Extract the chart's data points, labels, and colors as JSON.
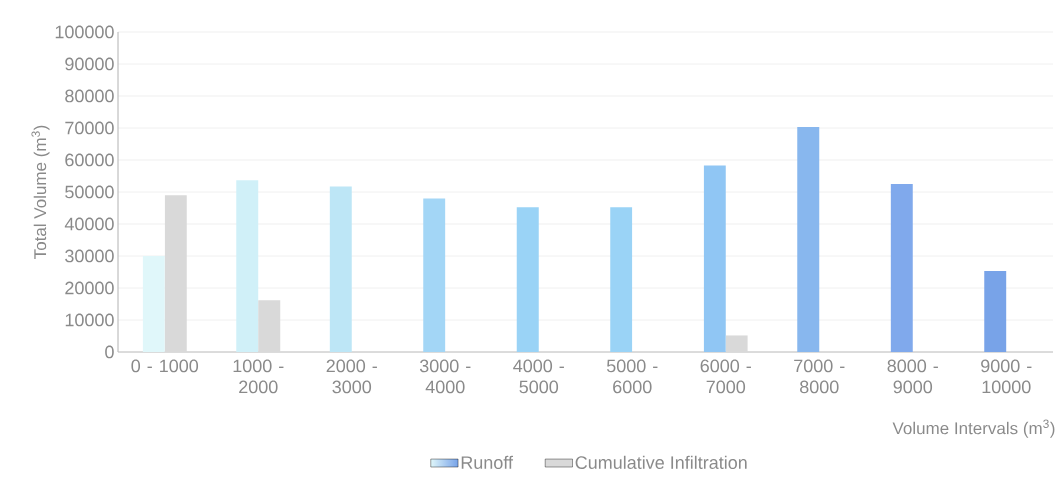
{
  "chart_data": {
    "type": "bar",
    "xlabel": "Volume Intervals (m$^{3}$)",
    "ylabel": "Total Volume (m$^{3}$)",
    "categories": [
      "0 - 1000",
      "1000 - 2000",
      "2000 - 3000",
      "3000 - 4000",
      "4000 - 5000",
      "5000 - 6000",
      "6000 - 7000",
      "7000 - 8000",
      "8000 - 9000",
      "9000 - 10000"
    ],
    "series": [
      {
        "name": "Runoff",
        "colors": [
          "#e0f7fa",
          "#d0f0f8",
          "#bde6f6",
          "#a3d6f6",
          "#9ad3f6",
          "#9ad3f6",
          "#90c6f4",
          "#88b7ee",
          "#80a9ec",
          "#78a3e8"
        ],
        "values": [
          30000,
          53700,
          51700,
          48000,
          45200,
          45200,
          58300,
          70300,
          52500,
          25300
        ]
      },
      {
        "name": "Cumulative Infiltration",
        "color": "#d9d9d9",
        "values": [
          49000,
          16200,
          0,
          0,
          0,
          0,
          5200,
          0,
          0,
          0
        ]
      }
    ],
    "ylim": [
      0,
      100000
    ],
    "yticks": [
      0,
      10000,
      20000,
      30000,
      40000,
      50000,
      60000,
      70000,
      80000,
      90000,
      100000
    ],
    "grid": "y",
    "legend": "bottom"
  }
}
